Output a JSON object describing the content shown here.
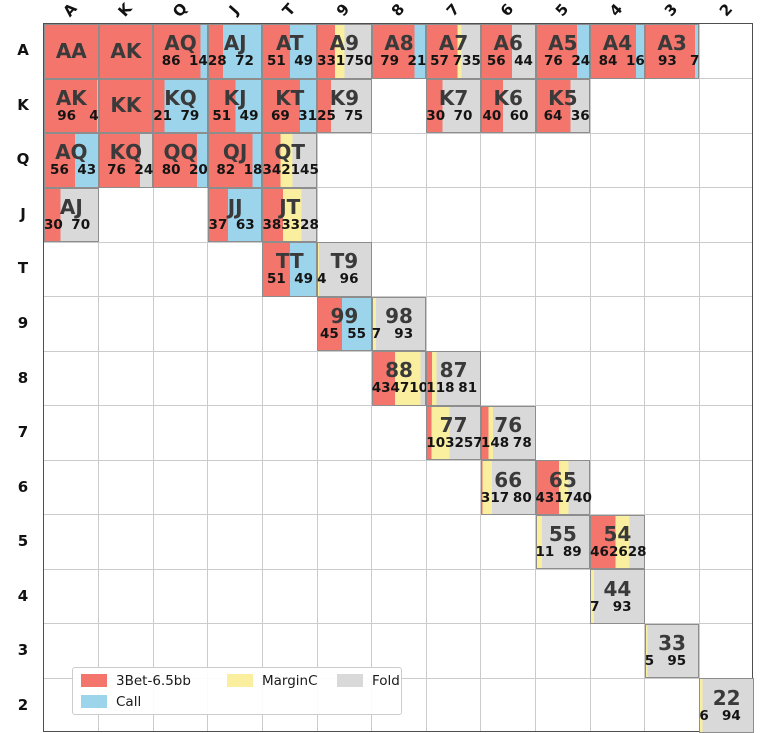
{
  "colors": {
    "threebet": "#f4756b",
    "call": "#9cd4eb",
    "marginc": "#f9ef9e",
    "fold": "#d9d9d9",
    "grid_line": "#cbcbcb",
    "cell_edge": "#8d8d8d",
    "frame": "#4e4e4e",
    "hand_text": "#3a3a3a",
    "number_text": "#141414"
  },
  "chart_data": {
    "type": "heatmap",
    "title": "",
    "xlabel": "",
    "ylabel": "",
    "x_ticklabels": [
      "A",
      "K",
      "Q",
      "J",
      "T",
      "9",
      "8",
      "7",
      "6",
      "5",
      "4",
      "3",
      "2"
    ],
    "y_ticklabels": [
      "A",
      "K",
      "Q",
      "J",
      "T",
      "9",
      "8",
      "7",
      "6",
      "5",
      "4",
      "3",
      "2"
    ],
    "grid": true,
    "legend": {
      "position": "lower left",
      "items": [
        {
          "key": "threebet",
          "label": "3Bet-6.5bb",
          "color": "#f4756b",
          "row": 1,
          "col": 1
        },
        {
          "key": "call",
          "label": "Call",
          "color": "#9cd4eb",
          "row": 2,
          "col": 1
        },
        {
          "key": "marginc",
          "label": "MarginC",
          "color": "#f9ef9e",
          "row": 1,
          "col": 2
        },
        {
          "key": "fold",
          "label": "Fold",
          "color": "#d9d9d9",
          "row": 1,
          "col": 3
        }
      ]
    },
    "cells": [
      {
        "row": "A",
        "col": "A",
        "hand": "AA",
        "segments": [
          [
            "threebet",
            100
          ]
        ]
      },
      {
        "row": "A",
        "col": "K",
        "hand": "AK",
        "segments": [
          [
            "threebet",
            100
          ]
        ]
      },
      {
        "row": "A",
        "col": "Q",
        "hand": "AQ",
        "segments": [
          [
            "threebet",
            86
          ],
          [
            "call",
            14
          ]
        ]
      },
      {
        "row": "A",
        "col": "J",
        "hand": "AJ",
        "segments": [
          [
            "threebet",
            28
          ],
          [
            "call",
            72
          ]
        ]
      },
      {
        "row": "A",
        "col": "T",
        "hand": "AT",
        "segments": [
          [
            "threebet",
            51
          ],
          [
            "call",
            49
          ]
        ]
      },
      {
        "row": "A",
        "col": "9",
        "hand": "A9",
        "segments": [
          [
            "threebet",
            33
          ],
          [
            "marginc",
            17
          ],
          [
            "fold",
            50
          ]
        ]
      },
      {
        "row": "A",
        "col": "8",
        "hand": "A8",
        "segments": [
          [
            "threebet",
            79
          ],
          [
            "call",
            21
          ]
        ]
      },
      {
        "row": "A",
        "col": "7",
        "hand": "A7",
        "segments": [
          [
            "threebet",
            57
          ],
          [
            "marginc",
            7
          ],
          [
            "fold",
            35
          ]
        ]
      },
      {
        "row": "A",
        "col": "6",
        "hand": "A6",
        "segments": [
          [
            "threebet",
            56
          ],
          [
            "fold",
            44
          ]
        ]
      },
      {
        "row": "A",
        "col": "5",
        "hand": "A5",
        "segments": [
          [
            "threebet",
            76
          ],
          [
            "call",
            24
          ]
        ]
      },
      {
        "row": "A",
        "col": "4",
        "hand": "A4",
        "segments": [
          [
            "threebet",
            84
          ],
          [
            "call",
            16
          ]
        ]
      },
      {
        "row": "A",
        "col": "3",
        "hand": "A3",
        "segments": [
          [
            "threebet",
            93
          ],
          [
            "call",
            7
          ]
        ]
      },
      {
        "row": "K",
        "col": "A",
        "hand": "AK",
        "segments": [
          [
            "threebet",
            96
          ],
          [
            "call",
            4
          ]
        ]
      },
      {
        "row": "K",
        "col": "K",
        "hand": "KK",
        "segments": [
          [
            "threebet",
            100
          ]
        ]
      },
      {
        "row": "K",
        "col": "Q",
        "hand": "KQ",
        "segments": [
          [
            "threebet",
            21
          ],
          [
            "call",
            79
          ]
        ]
      },
      {
        "row": "K",
        "col": "J",
        "hand": "KJ",
        "segments": [
          [
            "threebet",
            51
          ],
          [
            "call",
            49
          ]
        ]
      },
      {
        "row": "K",
        "col": "T",
        "hand": "KT",
        "segments": [
          [
            "threebet",
            69
          ],
          [
            "call",
            31
          ]
        ]
      },
      {
        "row": "K",
        "col": "9",
        "hand": "K9",
        "segments": [
          [
            "threebet",
            25
          ],
          [
            "fold",
            75
          ]
        ]
      },
      {
        "row": "K",
        "col": "7",
        "hand": "K7",
        "segments": [
          [
            "threebet",
            30
          ],
          [
            "fold",
            70
          ]
        ]
      },
      {
        "row": "K",
        "col": "6",
        "hand": "K6",
        "segments": [
          [
            "threebet",
            40
          ],
          [
            "fold",
            60
          ]
        ]
      },
      {
        "row": "K",
        "col": "5",
        "hand": "K5",
        "segments": [
          [
            "threebet",
            64
          ],
          [
            "fold",
            36
          ]
        ]
      },
      {
        "row": "Q",
        "col": "A",
        "hand": "AQ",
        "segments": [
          [
            "threebet",
            56
          ],
          [
            "call",
            43
          ]
        ]
      },
      {
        "row": "Q",
        "col": "K",
        "hand": "KQ",
        "segments": [
          [
            "threebet",
            76
          ],
          [
            "fold",
            24
          ]
        ]
      },
      {
        "row": "Q",
        "col": "Q",
        "hand": "QQ",
        "segments": [
          [
            "threebet",
            80
          ],
          [
            "call",
            20
          ]
        ]
      },
      {
        "row": "Q",
        "col": "J",
        "hand": "QJ",
        "segments": [
          [
            "threebet",
            82
          ],
          [
            "call",
            18
          ]
        ]
      },
      {
        "row": "Q",
        "col": "T",
        "hand": "QT",
        "segments": [
          [
            "threebet",
            34
          ],
          [
            "marginc",
            21
          ],
          [
            "fold",
            45
          ]
        ]
      },
      {
        "row": "J",
        "col": "A",
        "hand": "AJ",
        "segments": [
          [
            "threebet",
            30
          ],
          [
            "fold",
            70
          ]
        ]
      },
      {
        "row": "J",
        "col": "J",
        "hand": "JJ",
        "segments": [
          [
            "threebet",
            37
          ],
          [
            "call",
            63
          ]
        ]
      },
      {
        "row": "J",
        "col": "T",
        "hand": "JT",
        "segments": [
          [
            "threebet",
            38
          ],
          [
            "marginc",
            33
          ],
          [
            "fold",
            28
          ]
        ]
      },
      {
        "row": "T",
        "col": "T",
        "hand": "TT",
        "segments": [
          [
            "threebet",
            51
          ],
          [
            "call",
            49
          ]
        ]
      },
      {
        "row": "T",
        "col": "9",
        "hand": "T9",
        "segments": [
          [
            "marginc",
            4
          ],
          [
            "fold",
            96
          ]
        ]
      },
      {
        "row": "9",
        "col": "9",
        "hand": "99",
        "segments": [
          [
            "threebet",
            45
          ],
          [
            "call",
            55
          ]
        ]
      },
      {
        "row": "9",
        "col": "8",
        "hand": "98",
        "segments": [
          [
            "marginc",
            7
          ],
          [
            "fold",
            93
          ]
        ]
      },
      {
        "row": "8",
        "col": "8",
        "hand": "88",
        "segments": [
          [
            "threebet",
            43
          ],
          [
            "marginc",
            47
          ],
          [
            "fold",
            10
          ]
        ]
      },
      {
        "row": "8",
        "col": "7",
        "hand": "87",
        "segments": [
          [
            "threebet",
            11
          ],
          [
            "marginc",
            8
          ],
          [
            "fold",
            81
          ]
        ]
      },
      {
        "row": "7",
        "col": "7",
        "hand": "77",
        "segments": [
          [
            "threebet",
            10
          ],
          [
            "marginc",
            32
          ],
          [
            "fold",
            57
          ]
        ]
      },
      {
        "row": "7",
        "col": "6",
        "hand": "76",
        "segments": [
          [
            "threebet",
            14
          ],
          [
            "marginc",
            8
          ],
          [
            "fold",
            78
          ]
        ]
      },
      {
        "row": "6",
        "col": "6",
        "hand": "66",
        "segments": [
          [
            "threebet",
            3
          ],
          [
            "marginc",
            17
          ],
          [
            "fold",
            80
          ]
        ]
      },
      {
        "row": "6",
        "col": "5",
        "hand": "65",
        "segments": [
          [
            "threebet",
            43
          ],
          [
            "marginc",
            17
          ],
          [
            "fold",
            40
          ]
        ]
      },
      {
        "row": "5",
        "col": "5",
        "hand": "55",
        "segments": [
          [
            "marginc",
            11
          ],
          [
            "fold",
            89
          ]
        ]
      },
      {
        "row": "5",
        "col": "4",
        "hand": "54",
        "segments": [
          [
            "threebet",
            46
          ],
          [
            "marginc",
            26
          ],
          [
            "fold",
            28
          ]
        ]
      },
      {
        "row": "4",
        "col": "4",
        "hand": "44",
        "segments": [
          [
            "marginc",
            7
          ],
          [
            "fold",
            93
          ]
        ]
      },
      {
        "row": "3",
        "col": "3",
        "hand": "33",
        "segments": [
          [
            "marginc",
            5
          ],
          [
            "fold",
            95
          ]
        ]
      },
      {
        "row": "2",
        "col": "2",
        "hand": "22",
        "segments": [
          [
            "marginc",
            6
          ],
          [
            "fold",
            94
          ]
        ]
      }
    ]
  }
}
